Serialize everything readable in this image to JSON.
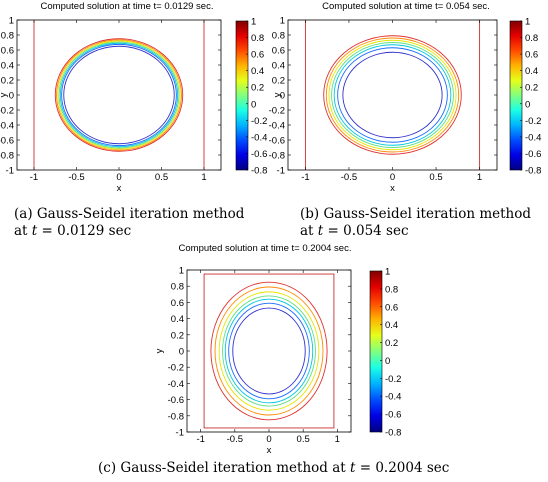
{
  "chart_data": [
    {
      "type": "contour",
      "title": "Computed solution at time t= 0.0129 sec.",
      "xlabel": "x",
      "ylabel": "y",
      "xticks": [
        "-1",
        "-0.5",
        "0",
        "0.5",
        "1"
      ],
      "yticks": [
        "1",
        "0.8",
        "0.6",
        "0.4",
        "0.2",
        "0",
        "-0.2",
        "-0.4",
        "-0.6",
        "-0.8",
        "-1"
      ],
      "xlim": [
        -1.2,
        1.2
      ],
      "ylim": [
        -1,
        1
      ],
      "colorbar": {
        "ticks": [
          "1",
          "0.8",
          "0.6",
          "0.4",
          "0.2",
          "0",
          "-0.2",
          "-0.4",
          "-0.6",
          "-0.8"
        ],
        "range": [
          -0.8,
          1
        ]
      },
      "domain_boundary": [
        -1,
        1
      ],
      "contours": [
        {
          "level": 0.8,
          "radius": 0.75,
          "color": "#e03030"
        },
        {
          "level": 0.6,
          "radius": 0.735,
          "color": "#ff8a00"
        },
        {
          "level": 0.4,
          "radius": 0.72,
          "color": "#e6e600"
        },
        {
          "level": 0.2,
          "radius": 0.705,
          "color": "#60e080"
        },
        {
          "level": 0.0,
          "radius": 0.69,
          "color": "#00c8e0"
        },
        {
          "level": -0.4,
          "radius": 0.675,
          "color": "#1a6cff"
        },
        {
          "level": -0.6,
          "radius": 0.65,
          "color": "#3030cc"
        }
      ],
      "caption": {
        "label": "(a)",
        "line1": "Gauss-Seidel iteration method",
        "line2_prefix": "at",
        "t_var": "t",
        "line2_value": "= 0.0129 sec"
      }
    },
    {
      "type": "contour",
      "title": "Computed solution at time t= 0.054 sec.",
      "xlabel": "x",
      "ylabel": "y",
      "xticks": [
        "-1",
        "-0.5",
        "0",
        "0.5",
        "1"
      ],
      "yticks": [
        "1",
        "0.8",
        "0.6",
        "0.4",
        "0.2",
        "0",
        "-0.2",
        "-0.4",
        "-0.6",
        "-0.8",
        "-1"
      ],
      "xlim": [
        -1.2,
        1.2
      ],
      "ylim": [
        -1,
        1
      ],
      "colorbar": {
        "ticks": [
          "1",
          "0.8",
          "0.6",
          "0.4",
          "0.2",
          "0",
          "-0.2",
          "-0.4",
          "-0.6",
          "-0.8"
        ],
        "range": [
          -0.8,
          1
        ]
      },
      "domain_boundary": [
        -1,
        1
      ],
      "contours": [
        {
          "level": 0.8,
          "radius": 0.79,
          "color": "#e03030"
        },
        {
          "level": 0.6,
          "radius": 0.76,
          "color": "#ff8a00"
        },
        {
          "level": 0.4,
          "radius": 0.73,
          "color": "#e6e600"
        },
        {
          "level": 0.2,
          "radius": 0.7,
          "color": "#60e080"
        },
        {
          "level": 0.0,
          "radius": 0.67,
          "color": "#00c8e0"
        },
        {
          "level": -0.4,
          "radius": 0.63,
          "color": "#1a6cff"
        },
        {
          "level": -0.6,
          "radius": 0.57,
          "color": "#3030cc"
        }
      ],
      "caption": {
        "label": "(b)",
        "line1": "Gauss-Seidel iteration method",
        "line2_prefix": "at",
        "t_var": "t",
        "line2_value": "= 0.054 sec"
      }
    },
    {
      "type": "contour",
      "title": "Computed solution at time t= 0.2004 sec.",
      "xlabel": "x",
      "ylabel": "y",
      "xticks": [
        "-1",
        "-0.5",
        "0",
        "0.5",
        "1"
      ],
      "yticks": [
        "1",
        "0.8",
        "0.6",
        "0.4",
        "0.2",
        "0",
        "-0.2",
        "-0.4",
        "-0.6",
        "-0.8",
        "-1"
      ],
      "xlim": [
        -1.2,
        1.2
      ],
      "ylim": [
        -1,
        1
      ],
      "colorbar": {
        "ticks": [
          "1",
          "0.8",
          "0.6",
          "0.4",
          "0.2",
          "0",
          "-0.2",
          "-0.4",
          "-0.6",
          "-0.8"
        ],
        "range": [
          -0.8,
          1
        ]
      },
      "domain_boundary": [
        -1,
        1
      ],
      "contours": [
        {
          "level": 0.8,
          "radius": 0.85,
          "color": "#e03030"
        },
        {
          "level": 0.6,
          "radius": 0.79,
          "color": "#ff8a00"
        },
        {
          "level": 0.4,
          "radius": 0.73,
          "color": "#e6e600"
        },
        {
          "level": 0.2,
          "radius": 0.68,
          "color": "#60e080"
        },
        {
          "level": 0.0,
          "radius": 0.64,
          "color": "#00c8e0"
        },
        {
          "level": -0.4,
          "radius": 0.59,
          "color": "#1a6cff"
        },
        {
          "level": -0.6,
          "radius": 0.53,
          "color": "#3030cc"
        }
      ],
      "caption": {
        "label": "(c)",
        "line1": "Gauss-Seidel iteration method at",
        "t_var": "t",
        "line2_value": "= 0.2004 sec"
      }
    }
  ]
}
